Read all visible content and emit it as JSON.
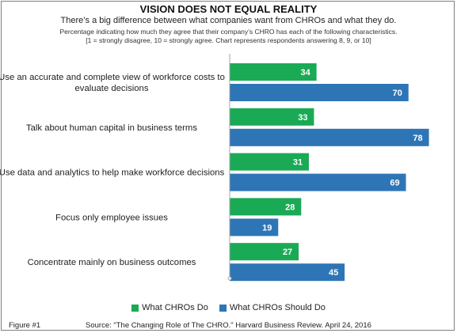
{
  "header": {
    "title": "VISION DOES NOT EQUAL REALITY",
    "subtitle": "There’s a big difference between what companies want from CHROs and what they do.",
    "note_line1": "Percentage indicating how much they agree that their company’s CHRO has each of the following characteristics.",
    "note_line2": "[1 = strongly disagree, 10 = strongly agree. Chart represents respondents answering 8, 9, or 10]"
  },
  "colors": {
    "do": "#1aaa55",
    "should": "#2e75b6",
    "axis": "#a6a6a6"
  },
  "chart_data": {
    "type": "bar",
    "orientation": "horizontal",
    "categories": [
      [
        "Use an accurate and complete view of workforce costs to",
        "evaluate decisions"
      ],
      [
        "Talk about human capital in business terms"
      ],
      [
        "Use data and analytics to help make workforce decisions"
      ],
      [
        "Focus only employee issues"
      ],
      [
        "Concentrate mainly on business outcomes"
      ]
    ],
    "series": [
      {
        "name": "What CHROs Do",
        "values": [
          34,
          33,
          31,
          28,
          27
        ]
      },
      {
        "name": "What CHROs Should Do",
        "values": [
          70,
          78,
          69,
          19,
          45
        ]
      }
    ],
    "xlim": [
      0,
      100
    ],
    "grid": false,
    "legend": "bottom"
  },
  "footer": {
    "figure": "Figure #1",
    "source": "Source: \"The Changing Role of The CHRO.\" Harvard Business Review. April 24, 2016"
  }
}
